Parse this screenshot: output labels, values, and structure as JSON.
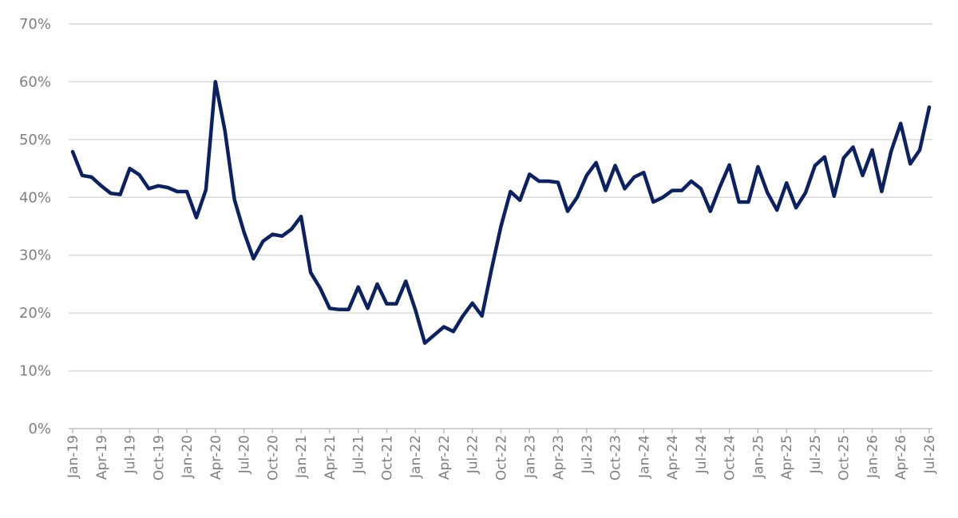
{
  "chart_data": {
    "type": "line",
    "title": "",
    "xlabel": "",
    "ylabel": "",
    "ylim": [
      0,
      70
    ],
    "ytick_step": 10,
    "ytick_format": "percent",
    "grid": "horizontal",
    "legend": "none",
    "line_color": "#0b2161",
    "xtick_labels": [
      "Jan-19",
      "Apr-19",
      "Jul-19",
      "Oct-19",
      "Jan-20",
      "Apr-20",
      "Jul-20",
      "Oct-20",
      "Jan-21",
      "Apr-21",
      "Jul-21",
      "Oct-21",
      "Jan-22",
      "Apr-22",
      "Jul-22",
      "Oct-22",
      "Jan-23",
      "Apr-23",
      "Jul-23",
      "Oct-23",
      "Jan-24",
      "Apr-24",
      "Jul-24",
      "Oct-24",
      "Jan-25",
      "Apr-25",
      "Jul-25",
      "Oct-25",
      "Jan-26",
      "Apr-26",
      "Jul-26"
    ],
    "x": [
      "Jan-19",
      "Feb-19",
      "Mar-19",
      "Apr-19",
      "May-19",
      "Jun-19",
      "Jul-19",
      "Aug-19",
      "Sep-19",
      "Oct-19",
      "Nov-19",
      "Dec-19",
      "Jan-20",
      "Feb-20",
      "Mar-20",
      "Apr-20",
      "May-20",
      "Jun-20",
      "Jul-20",
      "Aug-20",
      "Sep-20",
      "Oct-20",
      "Nov-20",
      "Dec-20",
      "Jan-21",
      "Feb-21",
      "Mar-21",
      "Apr-21",
      "May-21",
      "Jun-21",
      "Jul-21",
      "Aug-21",
      "Sep-21",
      "Oct-21",
      "Nov-21",
      "Dec-21",
      "Jan-22",
      "Feb-22",
      "Mar-22",
      "Apr-22",
      "May-22",
      "Jun-22",
      "Jul-22",
      "Aug-22",
      "Sep-22",
      "Oct-22",
      "Nov-22",
      "Dec-22",
      "Jan-23",
      "Feb-23",
      "Mar-23",
      "Apr-23",
      "May-23",
      "Jun-23",
      "Jul-23",
      "Aug-23",
      "Sep-23",
      "Oct-23",
      "Nov-23",
      "Dec-23",
      "Jan-24",
      "Feb-24",
      "Mar-24",
      "Apr-24",
      "May-24",
      "Jun-24",
      "Jul-24",
      "Aug-24",
      "Sep-24",
      "Oct-24",
      "Nov-24",
      "Dec-24",
      "Jan-25",
      "Feb-25",
      "Mar-25",
      "Apr-25",
      "May-25",
      "Jun-25",
      "Jul-25",
      "Aug-25",
      "Sep-25",
      "Oct-25",
      "Nov-25",
      "Dec-25",
      "Jan-26",
      "Feb-26",
      "Mar-26",
      "Apr-26",
      "May-26",
      "Jun-26",
      "Jul-26"
    ],
    "series": [
      {
        "values": [
          47.9,
          43.8,
          43.5,
          42.0,
          40.7,
          40.5,
          45.0,
          43.9,
          41.5,
          42.0,
          41.7,
          41.0,
          41.0,
          36.5,
          41.3,
          60.0,
          51.5,
          39.6,
          34.0,
          29.4,
          32.4,
          33.6,
          33.3,
          34.5,
          36.7,
          27.0,
          24.3,
          20.8,
          20.6,
          20.6,
          24.5,
          20.8,
          25.0,
          21.6,
          21.6,
          25.5,
          20.6,
          14.8,
          16.2,
          17.6,
          16.8,
          19.5,
          21.7,
          19.5,
          27.5,
          35.0,
          41.0,
          39.5,
          44.0,
          42.8,
          42.8,
          42.6,
          37.6,
          40.0,
          43.8,
          46.0,
          41.2,
          45.5,
          41.5,
          43.5,
          44.3,
          39.2,
          40.0,
          41.2,
          41.2,
          42.8,
          41.5,
          37.6,
          41.8,
          45.6,
          39.2,
          39.2,
          45.3,
          40.8,
          37.8,
          42.5,
          38.2,
          40.8,
          45.5,
          47.0,
          40.2,
          46.8,
          48.7,
          43.8,
          48.2,
          41.0,
          48.0,
          52.8,
          45.8,
          48.2,
          55.6
        ]
      }
    ]
  }
}
